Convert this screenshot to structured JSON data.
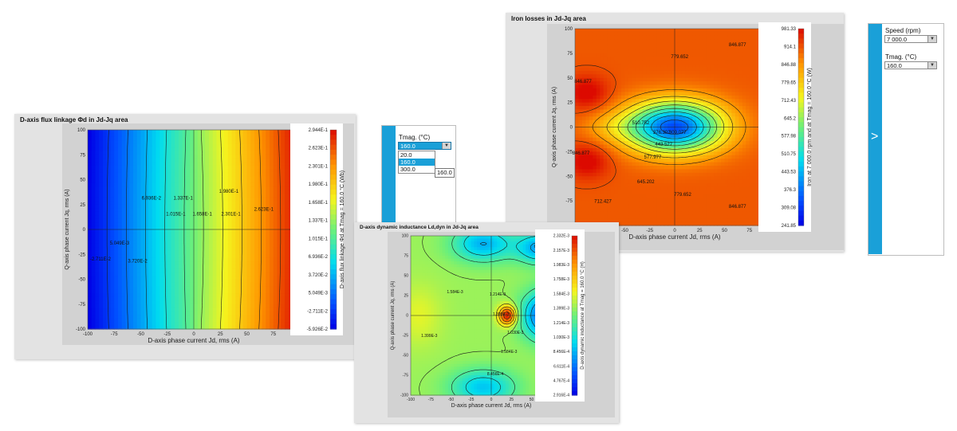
{
  "colors": {
    "panel": "#e3e3e3",
    "accent": "#1aa0d8"
  },
  "chart_data": [
    {
      "type": "heatmap",
      "title": "D-axis flux linkage Φd in Jd-Jq area",
      "xlabel": "D-axis phase current Jd, rms (A)",
      "ylabel": "Q-axis phase current Jq, rms (A)",
      "colorbar_label": "D-axis flux linkage Φd at Tmag = 160.0 °C (Wb)",
      "xlim": [
        -100,
        100
      ],
      "ylim": [
        -100,
        100
      ],
      "xticks": [
        "-100",
        "-75",
        "-50",
        "-25",
        "0",
        "25",
        "50",
        "75",
        "100"
      ],
      "yticks": [
        "100",
        "75",
        "50",
        "25",
        "0",
        "-25",
        "-50",
        "-75",
        "-100"
      ],
      "colorbar_ticks": [
        "2.944E-1",
        "2.623E-1",
        "2.301E-1",
        "1.980E-1",
        "1.658E-1",
        "1.337E-1",
        "1.015E-1",
        "6.936E-2",
        "3.720E-2",
        "5.049E-3",
        "-2.711E-2",
        "-5.926E-2"
      ],
      "contour_labels": [
        {
          "text": "6.936E-2",
          "x": -40,
          "y": 30
        },
        {
          "text": "1.337E-1",
          "x": -10,
          "y": 30
        },
        {
          "text": "1.980E-1",
          "x": 33,
          "y": 37
        },
        {
          "text": "2.623E-1",
          "x": 66,
          "y": 19
        },
        {
          "text": "1.015E-1",
          "x": -17,
          "y": 14
        },
        {
          "text": "1.658E-1",
          "x": 8,
          "y": 14
        },
        {
          "text": "2.301E-1",
          "x": 35,
          "y": 14
        },
        {
          "text": "5.049E-3",
          "x": -70,
          "y": -15
        },
        {
          "text": "-2.711E-2",
          "x": -88,
          "y": -31
        },
        {
          "text": "3.720E-2",
          "x": -53,
          "y": -33
        }
      ]
    },
    {
      "type": "heatmap",
      "title": "Iron losses in Jd-Jq area",
      "xlabel": "D-axis phase current Jd, rms (A)",
      "ylabel": "Q-axis phase current Jq, rms (A)",
      "colorbar_label": "Iron at 7 000.0 rpm and at Tmag = 160.0 °C (W)",
      "xlim": [
        -100,
        100
      ],
      "ylim": [
        -100,
        100
      ],
      "xticks": [
        "-100",
        "-75",
        "-50",
        "-25",
        "0",
        "25",
        "50",
        "75",
        "100"
      ],
      "yticks": [
        "100",
        "75",
        "50",
        "25",
        "0",
        "-25",
        "-50",
        "-75"
      ],
      "colorbar_ticks": [
        "981.33",
        "914.1",
        "846.88",
        "779.65",
        "712.43",
        "645.2",
        "577.98",
        "510.75",
        "443.53",
        "376.3",
        "309.08",
        "241.85"
      ],
      "contour_labels": [
        {
          "text": "779.652",
          "x": 5,
          "y": 70
        },
        {
          "text": "846.877",
          "x": 63,
          "y": 82
        },
        {
          "text": "846.877",
          "x": -92,
          "y": 45
        },
        {
          "text": "510.752",
          "x": -34,
          "y": 3
        },
        {
          "text": "376.302",
          "x": -13,
          "y": -7
        },
        {
          "text": "309.077",
          "x": 3,
          "y": -7
        },
        {
          "text": "443.527",
          "x": -11,
          "y": -19
        },
        {
          "text": "577.977",
          "x": -22,
          "y": -32
        },
        {
          "text": "846.877",
          "x": -94,
          "y": -28
        },
        {
          "text": "645.202",
          "x": -29,
          "y": -57
        },
        {
          "text": "712.427",
          "x": -72,
          "y": -77
        },
        {
          "text": "779.652",
          "x": 8,
          "y": -70
        },
        {
          "text": "846.877",
          "x": 63,
          "y": -82
        }
      ]
    },
    {
      "type": "heatmap",
      "title": "D-axis dynamic inductance Ld,dyn in Jd-Jq area",
      "xlabel": "D-axis phase current Jd, rms (A)",
      "ylabel": "Q-axis phase current Jq, rms (A)",
      "colorbar_label": "D-axis dynamic inductance at Tmag = 160.0 °C (H)",
      "xlim": [
        -100,
        100
      ],
      "ylim": [
        -100,
        100
      ],
      "xticks": [
        "-100",
        "-75",
        "-50",
        "-25",
        "0",
        "25",
        "50",
        "75",
        "100"
      ],
      "yticks": [
        "100",
        "75",
        "50",
        "25",
        "0",
        "-25",
        "-50",
        "-75",
        "-100"
      ],
      "colorbar_ticks": [
        "2.332E-3",
        "2.157E-3",
        "1.983E-3",
        "1.758E-3",
        "1.584E-3",
        "1.399E-3",
        "1.214E-3",
        "1.030E-3",
        "8.456E-4",
        "6.611E-4",
        "4.767E-4",
        "2.916E-4"
      ],
      "contour_labels": [
        {
          "text": "6.611E-4",
          "x": 63,
          "y": 85
        },
        {
          "text": "8.456E-4",
          "x": 82,
          "y": 65
        },
        {
          "text": "1.584E-3",
          "x": -45,
          "y": 28
        },
        {
          "text": "1.214E-3",
          "x": 8,
          "y": 25
        },
        {
          "text": "1.399E-3",
          "x": 12,
          "y": 0
        },
        {
          "text": "4.767E-4",
          "x": 72,
          "y": -17
        },
        {
          "text": "1.030E-3",
          "x": 30,
          "y": -23
        },
        {
          "text": "1.399E-3",
          "x": -77,
          "y": -27
        },
        {
          "text": "1.584E-3",
          "x": 22,
          "y": -47
        },
        {
          "text": "8.456E-4",
          "x": 5,
          "y": -75
        }
      ]
    }
  ],
  "tmag_panel": {
    "label": "Tmag. (°C)",
    "value": "160.0",
    "options": [
      "20.0",
      "160.0",
      "300.0"
    ],
    "tooltip": "160.0"
  },
  "iron_panel": {
    "speed_label": "Speed (rpm)",
    "speed_value": "7 000.0",
    "tmag_label": "Tmag. (°C)",
    "tmag_value": "160.0"
  },
  "arrow_glyph": ">",
  "dropdown_glyph": "▼"
}
